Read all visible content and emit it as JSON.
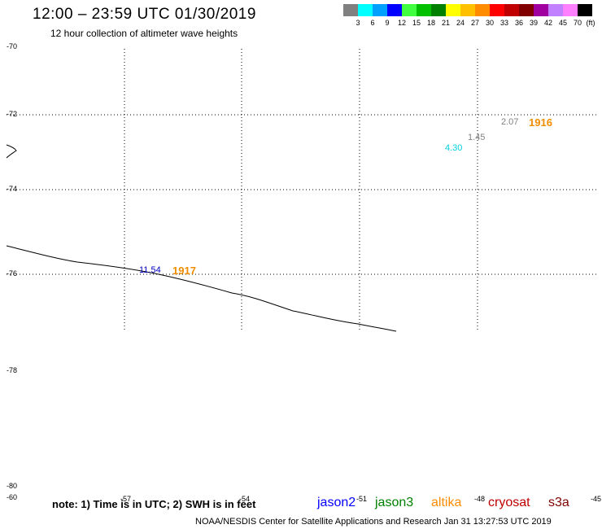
{
  "header": {
    "title": "12:00 – 23:59 UTC 01/30/2019",
    "subtitle": "12 hour collection of altimeter wave heights"
  },
  "legend": {
    "unit": "(ft)",
    "items": [
      {
        "label": "3",
        "color": "#808080"
      },
      {
        "label": "6",
        "color": "#00ffff"
      },
      {
        "label": "9",
        "color": "#00a0ff"
      },
      {
        "label": "12",
        "color": "#0000ff"
      },
      {
        "label": "15",
        "color": "#40ff40"
      },
      {
        "label": "18",
        "color": "#00c000"
      },
      {
        "label": "21",
        "color": "#008000"
      },
      {
        "label": "24",
        "color": "#ffff00"
      },
      {
        "label": "27",
        "color": "#ffc000"
      },
      {
        "label": "30",
        "color": "#ff8c00"
      },
      {
        "label": "33",
        "color": "#ff0000"
      },
      {
        "label": "36",
        "color": "#c00000"
      },
      {
        "label": "39",
        "color": "#800000"
      },
      {
        "label": "42",
        "color": "#a000a0"
      },
      {
        "label": "45",
        "color": "#c080ff"
      },
      {
        "label": "70",
        "color": "#ff80ff"
      },
      {
        "label": "",
        "color": "#000000"
      }
    ]
  },
  "map": {
    "lat_labels": [
      "-70",
      "-72",
      "-74",
      "-76",
      "-78",
      "-80",
      "-60"
    ],
    "observations": [
      {
        "value": "2.07",
        "color": "#808080"
      },
      {
        "value": "1.45",
        "color": "#808080"
      },
      {
        "value": "4.30",
        "color": "#00d0e0"
      },
      {
        "value": "11.54",
        "color": "#0000c0"
      }
    ],
    "pass_times": [
      "1916",
      "1917"
    ]
  },
  "footer": {
    "note": "note: 1) Time is in UTC; 2) SWH is in feet",
    "superscripts": [
      "-57",
      "-54",
      "-51",
      "-48",
      "-45"
    ],
    "satellites": [
      {
        "name": "jason2",
        "color": "#0000ff"
      },
      {
        "name": "jason3",
        "color": "#008000"
      },
      {
        "name": "altika",
        "color": "#ff8c00"
      },
      {
        "name": "cryosat",
        "color": "#c00000"
      },
      {
        "name": "s3a",
        "color": "#800000"
      }
    ],
    "credit": "NOAA/NESDIS Center for Satellite Applications and Research   Jan 31 13:27:53 UTC 2019"
  }
}
